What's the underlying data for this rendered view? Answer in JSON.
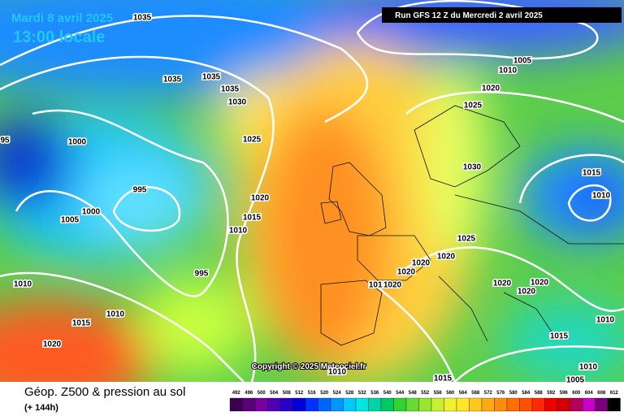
{
  "header": {
    "date": "Mardi 8 avril 2025",
    "time": "13:00 locale",
    "run": "Run GFS 12 Z du Mercredi 2 avril 2025"
  },
  "map": {
    "copyright": "Copyright © 2025 Meteociel.fr",
    "isobar_labels": [
      "1035",
      "1035",
      "1035",
      "1035",
      "1030",
      "1025",
      "1000",
      "995",
      "1000",
      "1005",
      "1020",
      "1015",
      "1010",
      "995",
      "1010",
      "1010",
      "1015",
      "1020",
      "1005",
      "1010",
      "1020",
      "1025",
      "1030",
      "1015",
      "1010",
      "1025",
      "1020",
      "1020",
      "1020",
      "1010",
      "1020",
      "1020",
      "1020",
      "1020",
      "1010",
      "1015",
      "1015",
      "1010",
      "1005",
      "1010",
      "95"
    ]
  },
  "footer": {
    "title": "Géop. Z500 & pression au sol",
    "subtitle": "(+ 144h)",
    "scale_labels": [
      "492",
      "496",
      "500",
      "504",
      "508",
      "512",
      "516",
      "520",
      "524",
      "528",
      "532",
      "536",
      "540",
      "544",
      "548",
      "552",
      "556",
      "560",
      "564",
      "568",
      "572",
      "576",
      "580",
      "584",
      "588",
      "592",
      "596",
      "600",
      "604",
      "608",
      "612"
    ]
  }
}
